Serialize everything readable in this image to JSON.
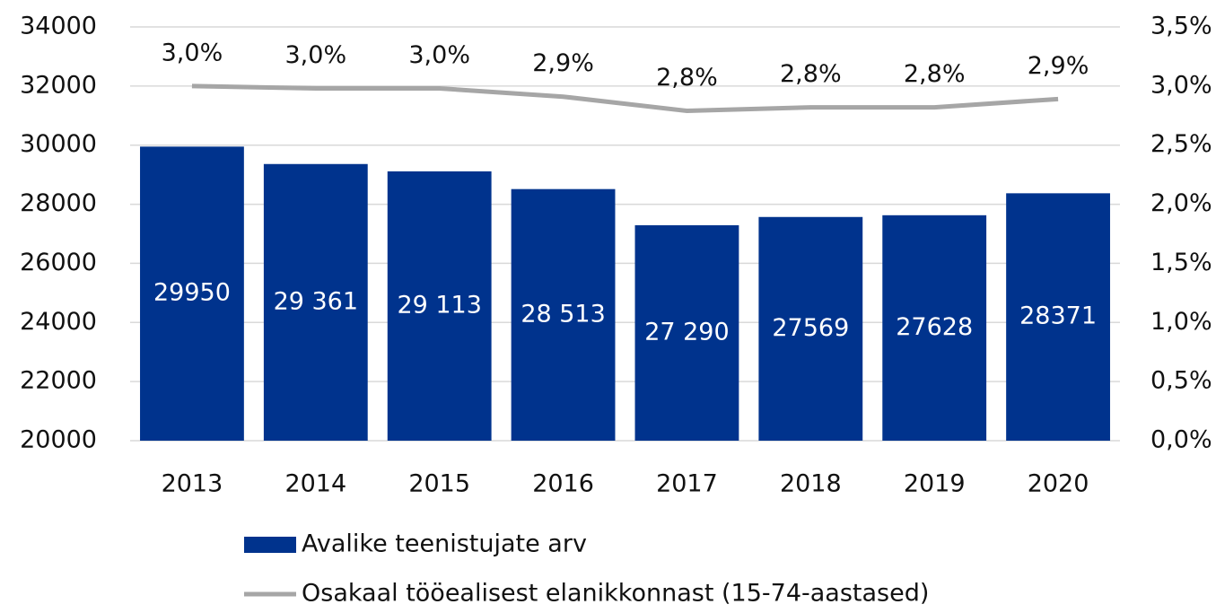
{
  "chart_data": {
    "type": "bar_line",
    "categories": [
      "2013",
      "2014",
      "2015",
      "2016",
      "2017",
      "2018",
      "2019",
      "2020"
    ],
    "series": [
      {
        "name": "Avalike teenistujate arv",
        "type": "bar",
        "color": "#00338d",
        "values": [
          29950,
          29361,
          29113,
          28513,
          27290,
          27569,
          27628,
          28371
        ],
        "value_labels": [
          "29950",
          "29 361",
          "29 113",
          "28 513",
          "27 290",
          "27569",
          "27628",
          "28371"
        ]
      },
      {
        "name": "Osakaal tööealisest elanikkonnast (15-74-aastased)",
        "type": "line",
        "axis": "y2",
        "color": "#a6a6a6",
        "values": [
          3.0,
          2.98,
          2.98,
          2.91,
          2.79,
          2.82,
          2.82,
          2.89
        ],
        "value_labels": [
          "3,0%",
          "3,0%",
          "3,0%",
          "2,9%",
          "2,8%",
          "2,8%",
          "2,8%",
          "2,9%"
        ]
      }
    ],
    "ylim": [
      20000,
      34000
    ],
    "yticks": [
      20000,
      22000,
      24000,
      26000,
      28000,
      30000,
      32000,
      34000
    ],
    "y2lim": [
      0,
      3.5
    ],
    "y2ticks": [
      {
        "value": 0,
        "label": "0,0%"
      },
      {
        "value": 0.5,
        "label": "0,5%"
      },
      {
        "value": 1.0,
        "label": "1,0%"
      },
      {
        "value": 1.5,
        "label": "1,5%"
      },
      {
        "value": 2.0,
        "label": "2,0%"
      },
      {
        "value": 2.5,
        "label": "2,5%"
      },
      {
        "value": 3.0,
        "label": "3,0%"
      },
      {
        "value": 3.5,
        "label": "3,5%"
      }
    ],
    "grid": true
  }
}
